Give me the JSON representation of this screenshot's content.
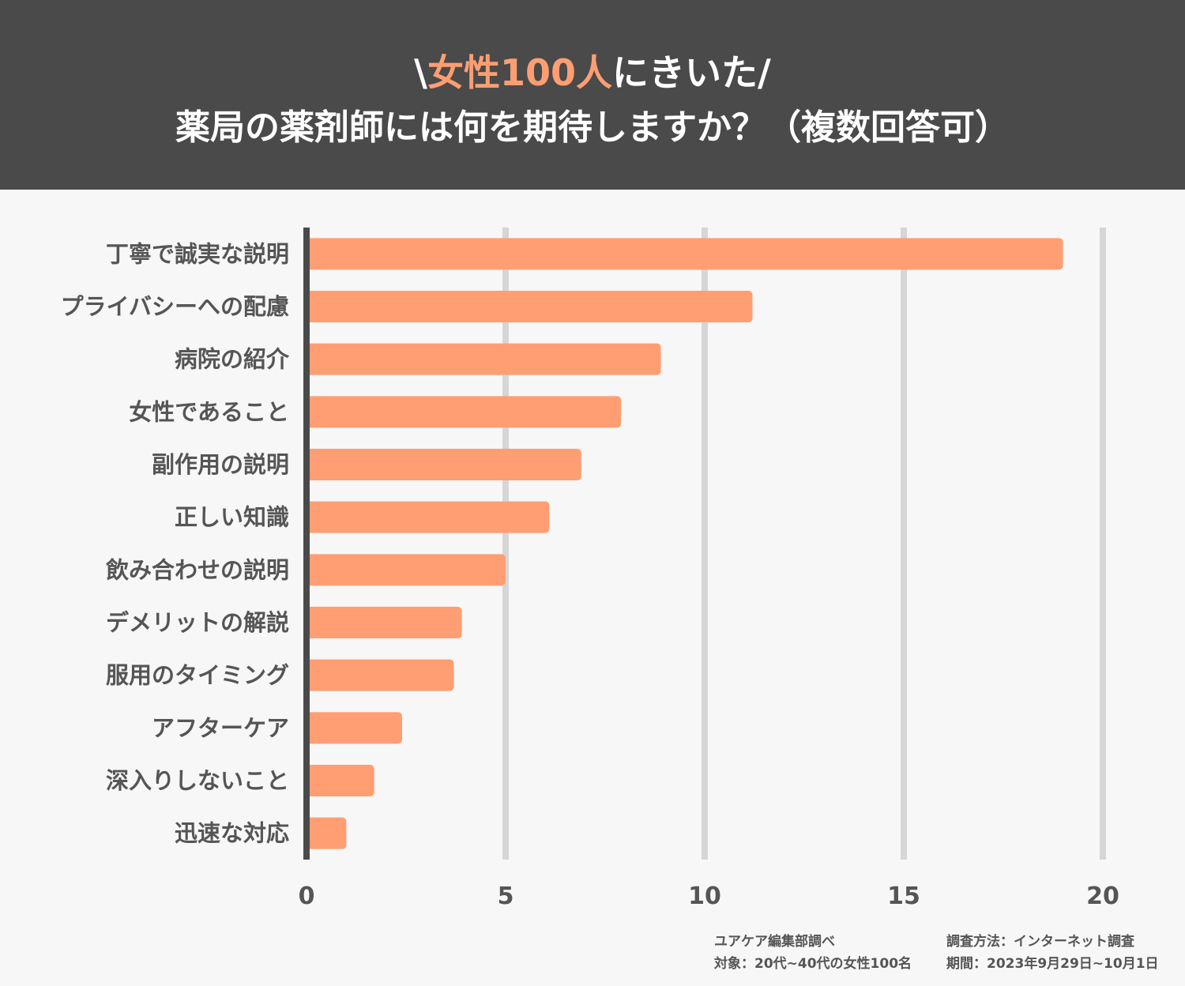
{
  "header": {
    "title_prefix": "\\",
    "title_accent": "女性100人",
    "title_suffix": "にきいた/",
    "question": "薬局の薬剤師には何を期待しますか？（複数回答可）"
  },
  "colors": {
    "header_bg": "#4a4a4a",
    "accent": "#ff9e73",
    "bar": "#ff9e73",
    "grid": "#d6d6d6",
    "axis": "#4a4a4a",
    "text": "#555555",
    "background": "#f7f7f7"
  },
  "chart_data": {
    "type": "bar",
    "orientation": "horizontal",
    "title": "薬局の薬剤師には何を期待しますか？（複数回答可）",
    "categories": [
      "丁寧で誠実な説明",
      "プライバシーへの配慮",
      "病院の紹介",
      "女性であること",
      "副作用の説明",
      "正しい知識",
      "飲み合わせの説明",
      "デメリットの解説",
      "服用のタイミング",
      "アフターケア",
      "深入りしないこと",
      "迅速な対応"
    ],
    "values": [
      19,
      11.2,
      8.9,
      7.9,
      6.9,
      6.1,
      5,
      3.9,
      3.7,
      2.4,
      1.7,
      1
    ],
    "xlim": [
      0,
      20
    ],
    "ticks": [
      0,
      5,
      10,
      15,
      20
    ],
    "tick_labels": [
      "0",
      "5",
      "10",
      "15",
      "20"
    ],
    "grid": true,
    "xlabel": "",
    "ylabel": ""
  },
  "footer": {
    "source": "ユアケア編集部調べ",
    "target": "対象：20代~40代の女性100名",
    "method": "調査方法：インターネット調査",
    "period": "期間：2023年9月29日~10月1日"
  }
}
